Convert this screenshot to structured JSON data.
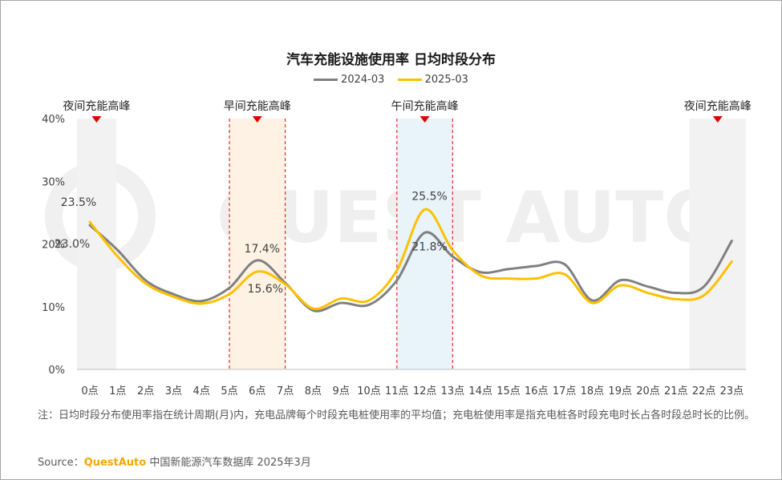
{
  "chart_data": {
    "type": "line",
    "title": "汽车充能设施使用率 日均时段分布",
    "categories": [
      "0点",
      "1点",
      "2点",
      "3点",
      "4点",
      "5点",
      "6点",
      "7点",
      "8点",
      "9点",
      "10点",
      "11点",
      "12点",
      "13点",
      "14点",
      "15点",
      "16点",
      "17点",
      "18点",
      "19点",
      "20点",
      "21点",
      "22点",
      "23点"
    ],
    "series": [
      {
        "name": "2024-03",
        "color": "#808080",
        "values": [
          23.0,
          19.0,
          14.2,
          12.0,
          10.9,
          13.0,
          17.4,
          13.8,
          9.4,
          10.6,
          10.3,
          14.2,
          21.8,
          18.0,
          15.5,
          16.0,
          16.5,
          16.8,
          11.0,
          14.2,
          13.2,
          12.2,
          13.2,
          20.5
        ]
      },
      {
        "name": "2025-03",
        "color": "#ffc000",
        "values": [
          23.5,
          18.0,
          13.7,
          11.6,
          10.5,
          12.0,
          15.6,
          13.6,
          9.7,
          11.3,
          11.0,
          15.8,
          25.5,
          19.0,
          15.0,
          14.5,
          14.5,
          15.2,
          10.6,
          13.4,
          12.2,
          11.2,
          11.8,
          17.2
        ]
      }
    ],
    "ylim": [
      0,
      40
    ],
    "yticks": [
      "0%",
      "10%",
      "20%",
      "30%",
      "40%"
    ],
    "grid": false,
    "legend": "top-center",
    "data_labels": [
      {
        "series": 1,
        "index": 0,
        "text": "23.5%"
      },
      {
        "series": 0,
        "index": 0,
        "text": "23.0%"
      },
      {
        "series": 0,
        "index": 6,
        "text": "17.4%"
      },
      {
        "series": 1,
        "index": 6,
        "text": "15.6%"
      },
      {
        "series": 1,
        "index": 12,
        "text": "25.5%"
      },
      {
        "series": 0,
        "index": 12,
        "text": "21.8%"
      }
    ],
    "zones": [
      {
        "label": "夜间充能高峰",
        "range": [
          0,
          1
        ],
        "fill": "#f2f2f2",
        "dashed": false
      },
      {
        "label": "早间充能高峰",
        "range": [
          5,
          7
        ],
        "fill": "#fdf2e3",
        "dashed": true
      },
      {
        "label": "午间充能高峰",
        "range": [
          11,
          13
        ],
        "fill": "#e8f4fa",
        "dashed": true
      },
      {
        "label": "夜间充能高峰",
        "range": [
          22,
          23
        ],
        "fill": "#f2f2f2",
        "dashed": false
      }
    ]
  },
  "watermark": "QUEST AUTO",
  "note": "注：日均时段分布使用率指在统计周期(月)内，充电品牌每个时段充电桩使用率的平均值；充电桩使用率是指充电桩各时段充电时长占各时段总时长的比例。",
  "source": {
    "prefix": "Source：",
    "brand": "QuestAuto",
    "text": " 中国新能源汽车数据库 2025年3月"
  }
}
